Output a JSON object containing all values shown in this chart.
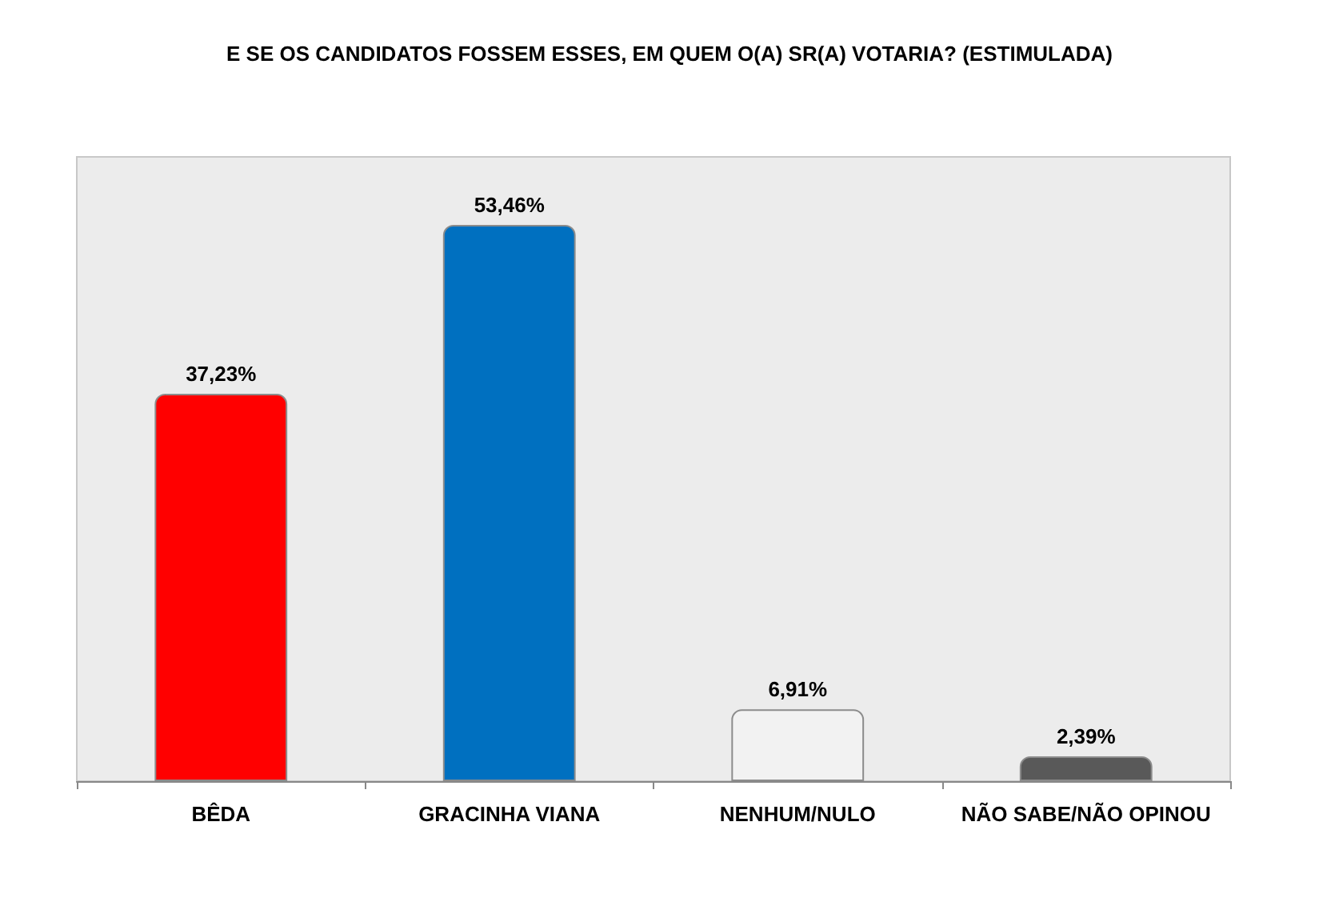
{
  "chart_data": {
    "type": "bar",
    "title": "E SE OS CANDIDATOS FOSSEM ESSES, EM QUEM O(A) SR(A) VOTARIA? (ESTIMULADA)",
    "categories": [
      "BÊDA",
      "GRACINHA VIANA",
      "NENHUM/NULO",
      "NÃO SABE/NÃO OPINOU"
    ],
    "values": [
      37.23,
      53.46,
      6.91,
      2.39
    ],
    "colors": [
      "#ff0000",
      "#0070c0",
      "#f2f2f2",
      "#595959"
    ],
    "value_labels": [
      "37,23%",
      "53,46%",
      "6,91%",
      "2,39%"
    ],
    "tick_labels": "x"
  }
}
